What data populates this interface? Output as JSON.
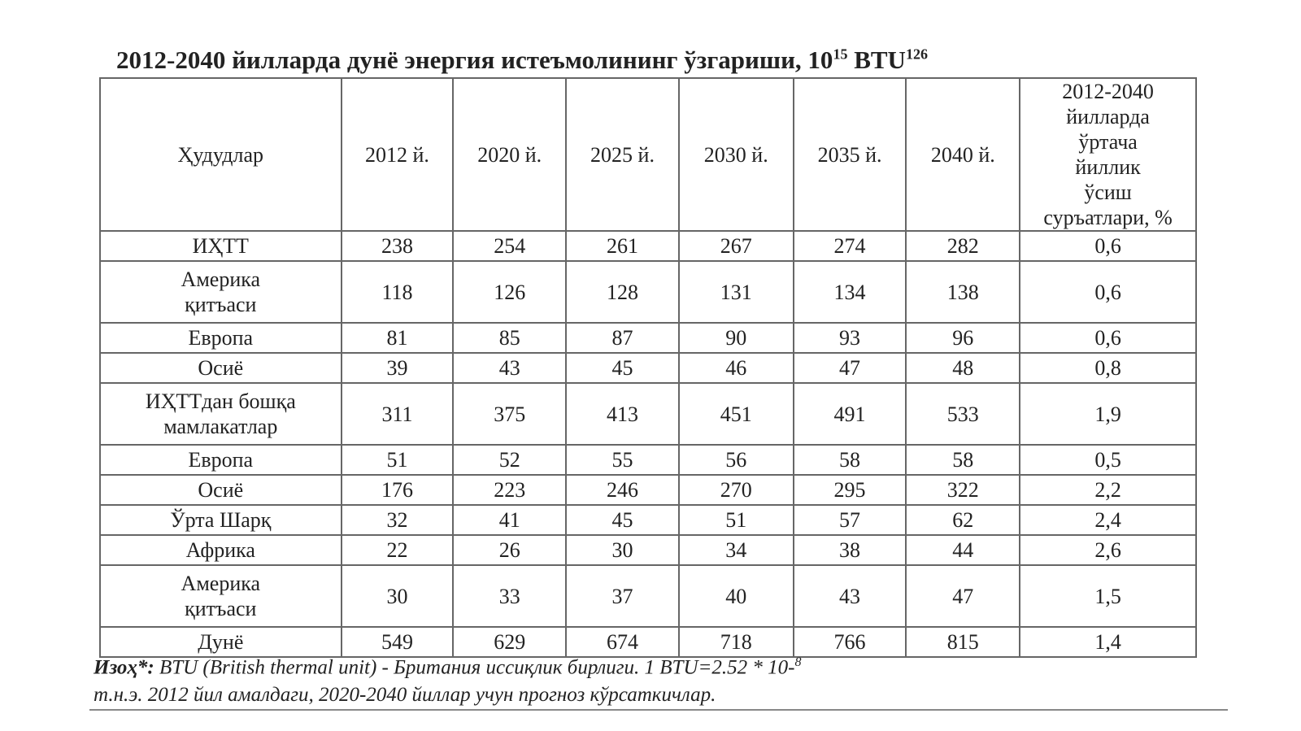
{
  "title": {
    "text": "2012-2040 йилларда дунё энергия истеъмолининг ўзгариши, 10",
    "exp": "15",
    "unit": "BTU",
    "ref": "126"
  },
  "table": {
    "header": [
      "Ҳудудлар",
      "2012 й.",
      "2020 й.",
      "2025 й.",
      "2030 й.",
      "2035 й.",
      "2040 й.",
      [
        "2012-2040",
        "йилларда",
        "ўртача",
        "йиллик",
        "ўсиш",
        "суръатлари, %"
      ]
    ],
    "rows": [
      {
        "region": [
          "ИҲТТ"
        ],
        "values": [
          "238",
          "254",
          "261",
          "267",
          "274",
          "282",
          "0,6"
        ]
      },
      {
        "region": [
          "Америка",
          "қитъаси"
        ],
        "values": [
          "118",
          "126",
          "128",
          "131",
          "134",
          "138",
          "0,6"
        ]
      },
      {
        "region": [
          "Европа"
        ],
        "values": [
          "81",
          "85",
          "87",
          "90",
          "93",
          "96",
          "0,6"
        ]
      },
      {
        "region": [
          "Осиё"
        ],
        "values": [
          "39",
          "43",
          "45",
          "46",
          "47",
          "48",
          "0,8"
        ]
      },
      {
        "region": [
          "ИҲТТдан бошқа",
          "мамлакатлар"
        ],
        "values": [
          "311",
          "375",
          "413",
          "451",
          "491",
          "533",
          "1,9"
        ]
      },
      {
        "region": [
          "Европа"
        ],
        "values": [
          "51",
          "52",
          "55",
          "56",
          "58",
          "58",
          "0,5"
        ]
      },
      {
        "region": [
          "Осиё"
        ],
        "values": [
          "176",
          "223",
          "246",
          "270",
          "295",
          "322",
          "2,2"
        ]
      },
      {
        "region": [
          "Ўрта Шарқ"
        ],
        "values": [
          "32",
          "41",
          "45",
          "51",
          "57",
          "62",
          "2,4"
        ]
      },
      {
        "region": [
          "Африка"
        ],
        "values": [
          "22",
          "26",
          "30",
          "34",
          "38",
          "44",
          "2,6"
        ]
      },
      {
        "region": [
          "Америка",
          "қитъаси"
        ],
        "values": [
          "30",
          "33",
          "37",
          "40",
          "43",
          "47",
          "1,5"
        ]
      },
      {
        "region": [
          "Дунё"
        ],
        "values": [
          "549",
          "629",
          "674",
          "718",
          "766",
          "815",
          "1,4"
        ]
      }
    ]
  },
  "note": {
    "label": "Изоҳ*:",
    "text": "BTU (British thermal unit) - Британия иссиқлик бирлиги. 1 BTU=2.52 * 10-",
    "exp": "8",
    "text2": "т.н.э. 2012 йил амалдаги, 2020-2040 йиллар учун прогноз кўрсаткичлар."
  }
}
